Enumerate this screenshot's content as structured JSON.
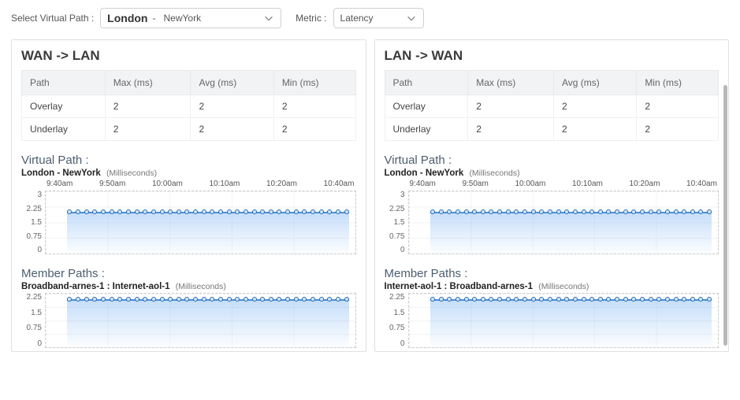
{
  "controls": {
    "select_path_label": "Select Virtual Path :",
    "source": "London",
    "dash": "-",
    "dest": "NewYork",
    "metric_label": "Metric :",
    "metric_value": "Latency"
  },
  "panels": {
    "left": {
      "title": "WAN -> LAN",
      "columns": [
        "Path",
        "Max (ms)",
        "Avg (ms)",
        "Min (ms)"
      ],
      "rows": [
        [
          "Overlay",
          "2",
          "2",
          "2"
        ],
        [
          "Underlay",
          "2",
          "2",
          "2"
        ]
      ],
      "virtual_path_heading": "Virtual Path :",
      "virtual_path_name": "London - NewYork",
      "virtual_path_unit": "(Milliseconds)",
      "member_paths_heading": "Member Paths :",
      "member_path_name": "Broadband-arnes-1 : Internet-aol-1",
      "member_path_unit": "(Milliseconds)"
    },
    "right": {
      "title": "LAN -> WAN",
      "columns": [
        "Path",
        "Max (ms)",
        "Avg (ms)",
        "Min (ms)"
      ],
      "rows": [
        [
          "Overlay",
          "2",
          "2",
          "2"
        ],
        [
          "Underlay",
          "2",
          "2",
          "2"
        ]
      ],
      "virtual_path_heading": "Virtual Path :",
      "virtual_path_name": "London - NewYork",
      "virtual_path_unit": "(Milliseconds)",
      "member_paths_heading": "Member Paths :",
      "member_path_name": "Internet-aol-1 : Broadband-arnes-1",
      "member_path_unit": "(Milliseconds)"
    }
  },
  "chart": {
    "type": "area-line",
    "x_labels": [
      "9:40am",
      "9:50am",
      "10:00am",
      "10:10am",
      "10:20am",
      "10:40am"
    ],
    "y_ticks": [
      "3",
      "2.25",
      "1.5",
      "0.75",
      "0"
    ],
    "y_ticks_short": [
      "2.25",
      "1.5",
      "0.75",
      "0"
    ],
    "series_value": 2,
    "ylim": [
      0,
      3
    ],
    "line_color": "#4a8fd8",
    "marker_border": "#2b6cb0",
    "marker_fill": "#cfe4fb",
    "fill_top": "rgba(90,160,240,0.35)",
    "fill_bottom": "rgba(90,160,240,0.02)",
    "grid_color": "rgba(0,0,0,0.05)",
    "n_markers": 34
  },
  "colors": {
    "panel_border": "#e0e0e0",
    "header_bg": "#f1f3f5",
    "text_muted": "#666",
    "section_heading": "#4c5d70"
  }
}
